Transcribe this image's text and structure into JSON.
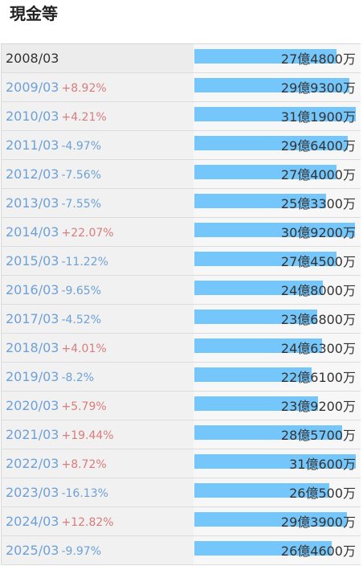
{
  "title": "現金等",
  "chart_data": {
    "type": "bar",
    "orientation": "horizontal",
    "unit": "yen",
    "max_value": 3190000000,
    "rows": [
      {
        "year": "2008/03",
        "change": "",
        "direction": "",
        "amount": "27億4800万",
        "value": 2748000000
      },
      {
        "year": "2009/03",
        "change": "+8.92%",
        "direction": "up",
        "amount": "29億9300万",
        "value": 2993000000
      },
      {
        "year": "2010/03",
        "change": "+4.21%",
        "direction": "up",
        "amount": "31億1900万",
        "value": 3119000000
      },
      {
        "year": "2011/03",
        "change": "-4.97%",
        "direction": "down",
        "amount": "29億6400万",
        "value": 2964000000
      },
      {
        "year": "2012/03",
        "change": "-7.56%",
        "direction": "down",
        "amount": "27億4000万",
        "value": 2740000000
      },
      {
        "year": "2013/03",
        "change": "-7.55%",
        "direction": "down",
        "amount": "25億3300万",
        "value": 2533000000
      },
      {
        "year": "2014/03",
        "change": "+22.07%",
        "direction": "up",
        "amount": "30億9200万",
        "value": 3092000000
      },
      {
        "year": "2015/03",
        "change": "-11.22%",
        "direction": "down",
        "amount": "27億4500万",
        "value": 2745000000
      },
      {
        "year": "2016/03",
        "change": "-9.65%",
        "direction": "down",
        "amount": "24億8000万",
        "value": 2480000000
      },
      {
        "year": "2017/03",
        "change": "-4.52%",
        "direction": "down",
        "amount": "23億6800万",
        "value": 2368000000
      },
      {
        "year": "2018/03",
        "change": "+4.01%",
        "direction": "up",
        "amount": "24億6300万",
        "value": 2463000000
      },
      {
        "year": "2019/03",
        "change": "-8.2%",
        "direction": "down",
        "amount": "22億6100万",
        "value": 2261000000
      },
      {
        "year": "2020/03",
        "change": "+5.79%",
        "direction": "up",
        "amount": "23億9200万",
        "value": 2392000000
      },
      {
        "year": "2021/03",
        "change": "+19.44%",
        "direction": "up",
        "amount": "28億5700万",
        "value": 2857000000
      },
      {
        "year": "2022/03",
        "change": "+8.72%",
        "direction": "up",
        "amount": "31億600万",
        "value": 3106000000
      },
      {
        "year": "2023/03",
        "change": "-16.13%",
        "direction": "down",
        "amount": "26億500万",
        "value": 2605000000
      },
      {
        "year": "2024/03",
        "change": "+12.82%",
        "direction": "up",
        "amount": "29億3900万",
        "value": 2939000000
      },
      {
        "year": "2025/03",
        "change": "-9.97%",
        "direction": "down",
        "amount": "26億4600万",
        "value": 2646000000
      }
    ],
    "bar_color": "#74c6fb"
  }
}
